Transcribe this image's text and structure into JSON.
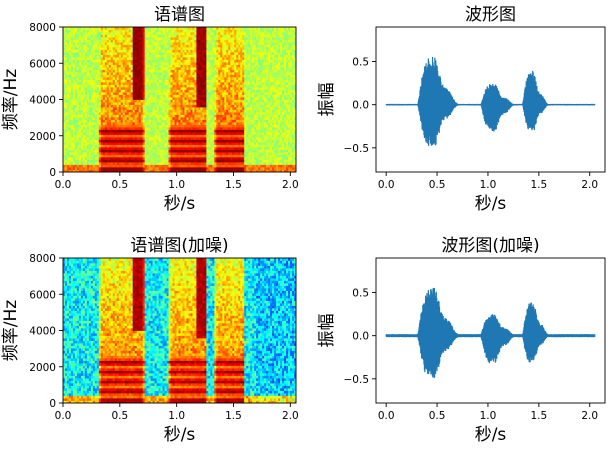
{
  "chart_data": [
    {
      "type": "heatmap",
      "title": "语谱图",
      "xlabel": "秒/s",
      "ylabel": "频率/Hz",
      "xlim": [
        0,
        2.05
      ],
      "ylim": [
        0,
        8000
      ],
      "xticks": [
        "0.0",
        "0.5",
        "1.0",
        "1.5",
        "2.0"
      ],
      "yticks": [
        "0",
        "2000",
        "4000",
        "6000",
        "8000"
      ],
      "colormap": "jet",
      "noise": false,
      "segments": [
        [
          0.31,
          0.72
        ],
        [
          0.93,
          1.27
        ],
        [
          1.34,
          1.6
        ]
      ]
    },
    {
      "type": "line",
      "title": "波形图",
      "xlabel": "秒/s",
      "ylabel": "振幅",
      "xlim": [
        -0.1,
        2.15
      ],
      "ylim": [
        -0.78,
        0.9
      ],
      "xticks": [
        "0.0",
        "0.5",
        "1.0",
        "1.5",
        "2.0"
      ],
      "yticks": [
        "−0.5",
        "0.0",
        "0.5"
      ],
      "color": "#1f77b4",
      "noise": false,
      "segments": [
        [
          0.31,
          0.72,
          0.8,
          0.7
        ],
        [
          0.93,
          1.27,
          0.35,
          0.45
        ],
        [
          1.34,
          1.6,
          0.55,
          0.45
        ]
      ]
    },
    {
      "type": "heatmap",
      "title": "语谱图(加噪)",
      "xlabel": "秒/s",
      "ylabel": "频率/Hz",
      "xlim": [
        0,
        2.05
      ],
      "ylim": [
        0,
        8000
      ],
      "xticks": [
        "0.0",
        "0.5",
        "1.0",
        "1.5",
        "2.0"
      ],
      "yticks": [
        "0",
        "2000",
        "4000",
        "6000",
        "8000"
      ],
      "colormap": "jet",
      "noise": true,
      "segments": [
        [
          0.31,
          0.72
        ],
        [
          0.93,
          1.27
        ],
        [
          1.34,
          1.6
        ]
      ]
    },
    {
      "type": "line",
      "title": "波形图(加噪)",
      "xlabel": "秒/s",
      "ylabel": "振幅",
      "xlim": [
        -0.1,
        2.15
      ],
      "ylim": [
        -0.78,
        0.9
      ],
      "xticks": [
        "0.0",
        "0.5",
        "1.0",
        "1.5",
        "2.0"
      ],
      "yticks": [
        "−0.5",
        "0.0",
        "0.5"
      ],
      "color": "#1f77b4",
      "noise": true,
      "segments": [
        [
          0.31,
          0.72,
          0.8,
          0.7
        ],
        [
          0.93,
          1.27,
          0.35,
          0.45
        ],
        [
          1.34,
          1.6,
          0.55,
          0.45
        ]
      ]
    }
  ]
}
